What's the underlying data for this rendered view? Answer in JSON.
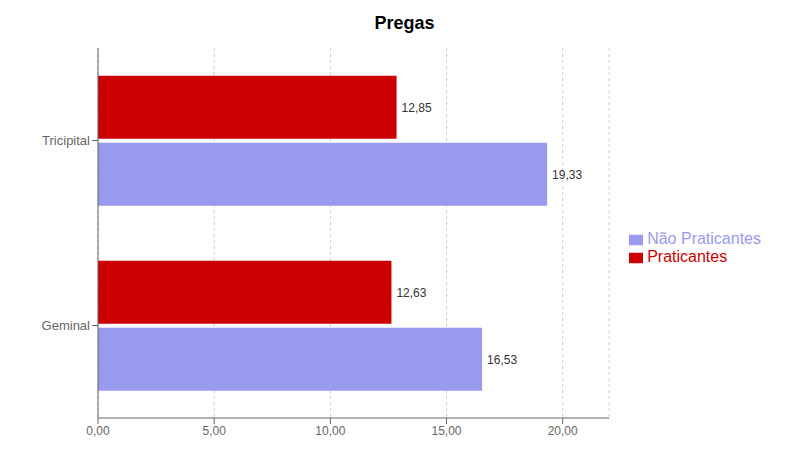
{
  "chart_data": {
    "type": "bar",
    "title": "Pregas",
    "orientation": "horizontal",
    "categories": [
      "Geminal",
      "Tricipital"
    ],
    "series": [
      {
        "name": "Praticantes",
        "color": "#CC0000",
        "values": [
          12.63,
          12.85
        ],
        "value_labels": [
          "12,63",
          "12,85"
        ]
      },
      {
        "name": "Não Praticantes",
        "color": "#9999EE",
        "values": [
          16.53,
          19.33
        ],
        "value_labels": [
          "16,53",
          "19,33"
        ]
      }
    ],
    "xlim": [
      0,
      22
    ],
    "xticks": [
      {
        "value": 0,
        "label": "0,00"
      },
      {
        "value": 5,
        "label": "5,00"
      },
      {
        "value": 10,
        "label": "10,00"
      },
      {
        "value": 15,
        "label": "15,00"
      },
      {
        "value": 20,
        "label": "20,00"
      }
    ],
    "grid": true,
    "legend": "right",
    "data_labels": true
  }
}
